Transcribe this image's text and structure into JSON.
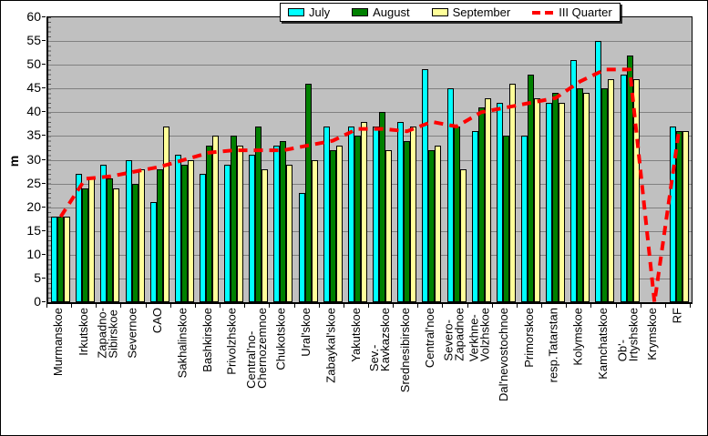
{
  "chart_data": {
    "type": "bar",
    "title": "",
    "ylabel": "m",
    "ylim": [
      0,
      60
    ],
    "ytick_step": 5,
    "grid": true,
    "plot_background": "#c0c0c0",
    "gridline_color": "#808080",
    "legend_position": "top",
    "categories": [
      "Murmanskoe",
      "Irkutskoe",
      "Zapadno-\nSibirskoe",
      "Severnoe",
      "CAO",
      "Sakhalinskoe",
      "Bashkirskoe",
      "Privolzhskoe",
      "Central'no-\nChernozemnoe",
      "Chukotskoe",
      "Ural'skoe",
      "Zabaykal'skoe",
      "Yakutskoe",
      "Sev.-\nKavkazskoe",
      "Srednesibirskoe",
      "Central'noe",
      "Severo-\nZapadnoe",
      "Verkhne-\nVolzhskoe",
      "Dal'nevostochnoe",
      "Primorskoe",
      "resp.Tatarstan",
      "Kolymskoe",
      "Kamchatskoe",
      "Ob'-\nIrtyshskoe",
      "Krymskoe",
      "RF"
    ],
    "series": [
      {
        "name": "July",
        "kind": "bar",
        "color": "#00ffff",
        "values": [
          18,
          27,
          29,
          30,
          21,
          31,
          27,
          29,
          31,
          33,
          23,
          37,
          37,
          37,
          38,
          49,
          45,
          36,
          42,
          35,
          42,
          51,
          55,
          48,
          0,
          37
        ]
      },
      {
        "name": "August",
        "kind": "bar",
        "color": "#008000",
        "values": [
          18,
          24,
          26,
          25,
          28,
          29,
          33,
          35,
          37,
          34,
          46,
          32,
          35,
          40,
          34,
          32,
          37,
          41,
          35,
          48,
          44,
          45,
          45,
          52,
          0,
          36
        ]
      },
      {
        "name": "September",
        "kind": "bar",
        "color": "#ffff99",
        "values": [
          18,
          26,
          24,
          28,
          37,
          30,
          35,
          33,
          28,
          29,
          30,
          33,
          38,
          32,
          37,
          33,
          28,
          43,
          46,
          43,
          42,
          44,
          47,
          47,
          0,
          36
        ]
      },
      {
        "name": "III Quarter",
        "kind": "line",
        "color": "#ff0000",
        "dashed": true,
        "values": [
          18,
          26,
          26.5,
          27.5,
          28.5,
          30,
          31.5,
          32,
          32,
          32,
          33,
          34,
          36.5,
          36.5,
          36,
          38,
          37,
          40,
          41,
          42,
          43,
          46.5,
          49,
          49,
          0,
          36.5
        ]
      }
    ]
  }
}
